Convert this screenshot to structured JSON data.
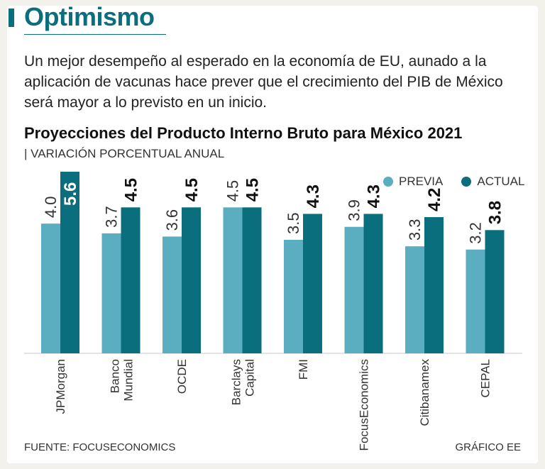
{
  "header": {
    "title": "Optimismo",
    "intro": "Un mejor desempeño al esperado en la economía de EU, aunado a la aplicación de vacunas hace prever que el crecimiento del PIB de México será mayor a lo previsto en un inicio."
  },
  "legend": {
    "previa": "PREVIA",
    "actual": "ACTUAL"
  },
  "footer": {
    "source": "FUENTE: FOCUSECONOMICS",
    "credit": "GRÁFICO EE"
  },
  "colors": {
    "previa": "#5aaec0",
    "actual": "#0b6e7c",
    "brand": "#0b6e7c"
  },
  "chart_data": {
    "type": "bar",
    "title": "Proyecciones del Producto Interno Bruto para México 2021",
    "subtitle": "| VARIACIÓN PORCENTUAL ANUAL",
    "categories": [
      "JPMorgan",
      "Banco Mundial",
      "OCDE",
      "Barclays Capital",
      "FMI",
      "FocusEconomics",
      "Citibanamex",
      "CEPAL"
    ],
    "category_lines": [
      [
        "JPMorgan"
      ],
      [
        "Banco",
        "Mundial"
      ],
      [
        "OCDE"
      ],
      [
        "Barclays",
        "Capital"
      ],
      [
        "FMI"
      ],
      [
        "FocusEconomics"
      ],
      [
        "Citibanamex"
      ],
      [
        "CEPAL"
      ]
    ],
    "series": [
      {
        "name": "PREVIA",
        "values": [
          4.0,
          3.7,
          3.6,
          4.5,
          3.5,
          3.9,
          3.3,
          3.2
        ]
      },
      {
        "name": "ACTUAL",
        "values": [
          5.6,
          4.5,
          4.5,
          4.5,
          4.3,
          4.3,
          4.2,
          3.8
        ]
      }
    ],
    "value_labels_previa": [
      "4.0",
      "3.7",
      "3.6",
      "4.5",
      "3.5",
      "3.9",
      "3.3",
      "3.2"
    ],
    "value_labels_actual": [
      "5.6",
      "4.5",
      "4.5",
      "4.5",
      "4.3",
      "4.3",
      "4.2",
      "3.8"
    ],
    "ylim": [
      0,
      5.6
    ]
  }
}
